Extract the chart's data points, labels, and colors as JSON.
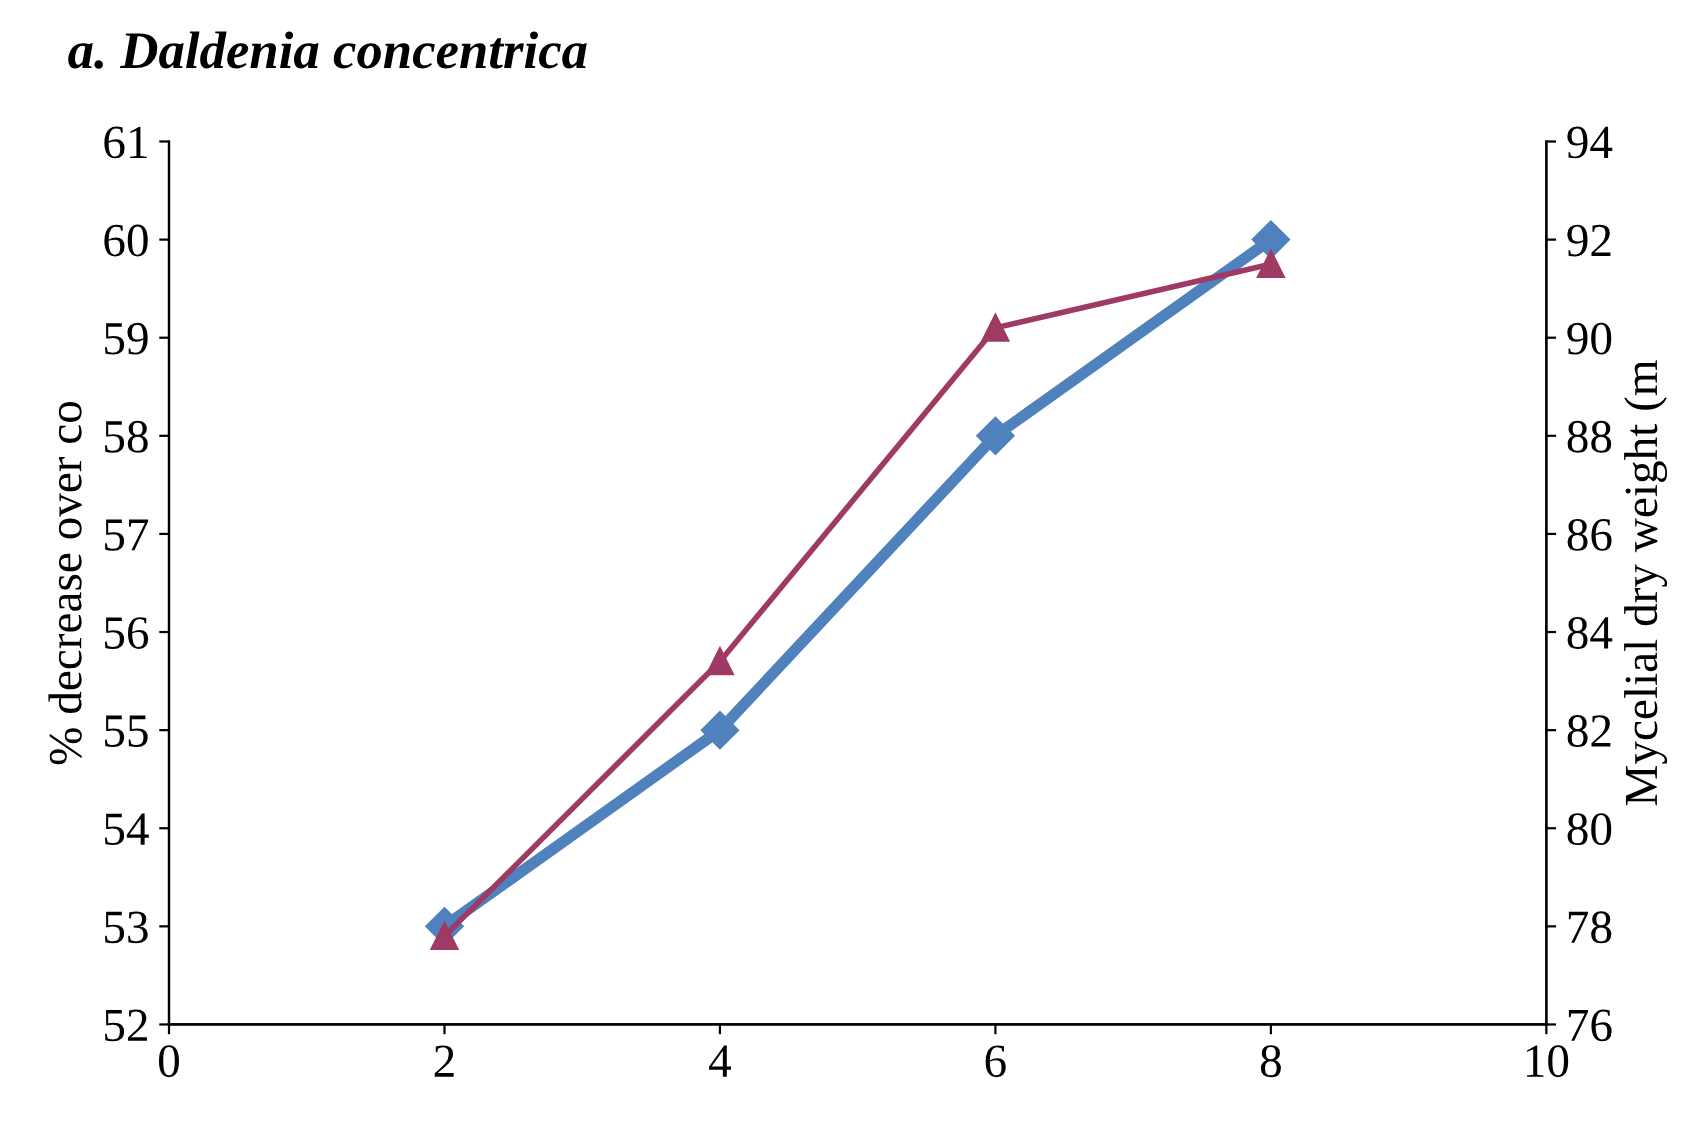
{
  "chart_data": {
    "type": "line",
    "title": "a. Daldenia concentrica",
    "xlim": [
      0,
      10
    ],
    "xticks": [
      0,
      2,
      4,
      6,
      8,
      10
    ],
    "ylim": [
      52,
      61
    ],
    "yticks": [
      52,
      53,
      54,
      55,
      56,
      57,
      58,
      59,
      60,
      61
    ],
    "y2lim": [
      76,
      94
    ],
    "y2ticks": [
      76,
      78,
      80,
      82,
      84,
      86,
      88,
      90,
      92,
      94
    ],
    "ylabel": "% decrease over co",
    "y2label": "Mycelial dry weight (m",
    "grid": false,
    "legend": false,
    "series": [
      {
        "color": "#4f81bd",
        "marker": "diamond",
        "x": [
          2,
          4,
          6,
          8
        ],
        "values": [
          53,
          55,
          58,
          60
        ]
      },
      {
        "color": "#9e3a63",
        "marker": "triangle",
        "axis": "y2",
        "x": [
          2,
          4,
          6,
          8
        ],
        "values": [
          77.8,
          83.4,
          90.2,
          91.5
        ]
      }
    ]
  }
}
